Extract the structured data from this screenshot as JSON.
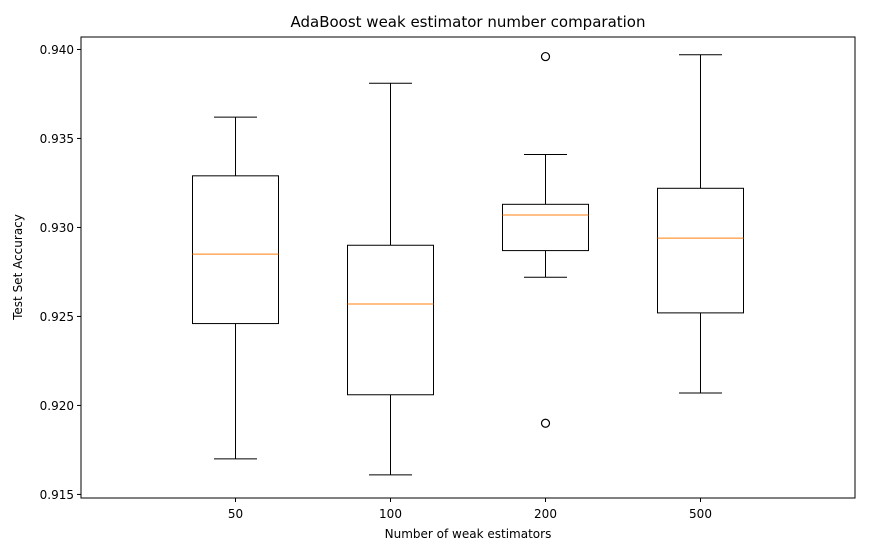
{
  "chart_data": {
    "type": "boxplot",
    "title": "AdaBoost weak estimator number comparation",
    "xlabel": "Number of weak estimators",
    "ylabel": "Test Set Accuracy",
    "categories": [
      "50",
      "100",
      "200",
      "500"
    ],
    "ylim": [
      0.9148,
      0.9407
    ],
    "yticks": [
      0.915,
      0.92,
      0.925,
      0.93,
      0.935,
      0.94
    ],
    "ytick_labels": [
      "0.915",
      "0.920",
      "0.925",
      "0.930",
      "0.935",
      "0.940"
    ],
    "boxes": [
      {
        "category": "50",
        "whisker_low": 0.917,
        "q1": 0.9246,
        "median": 0.9285,
        "q3": 0.9329,
        "whisker_high": 0.9362,
        "outliers": []
      },
      {
        "category": "100",
        "whisker_low": 0.9161,
        "q1": 0.9206,
        "median": 0.9257,
        "q3": 0.929,
        "whisker_high": 0.9381,
        "outliers": []
      },
      {
        "category": "200",
        "whisker_low": 0.9272,
        "q1": 0.9287,
        "median": 0.9307,
        "q3": 0.9313,
        "whisker_high": 0.9341,
        "outliers": [
          0.9396,
          0.919
        ]
      },
      {
        "category": "500",
        "whisker_low": 0.9207,
        "q1": 0.9252,
        "median": 0.9294,
        "q3": 0.9322,
        "whisker_high": 0.9397,
        "outliers": []
      }
    ],
    "colors": {
      "box": "#000000",
      "median": "#ff7f0e",
      "background": "#ffffff"
    },
    "grid": false,
    "legend": "none"
  }
}
